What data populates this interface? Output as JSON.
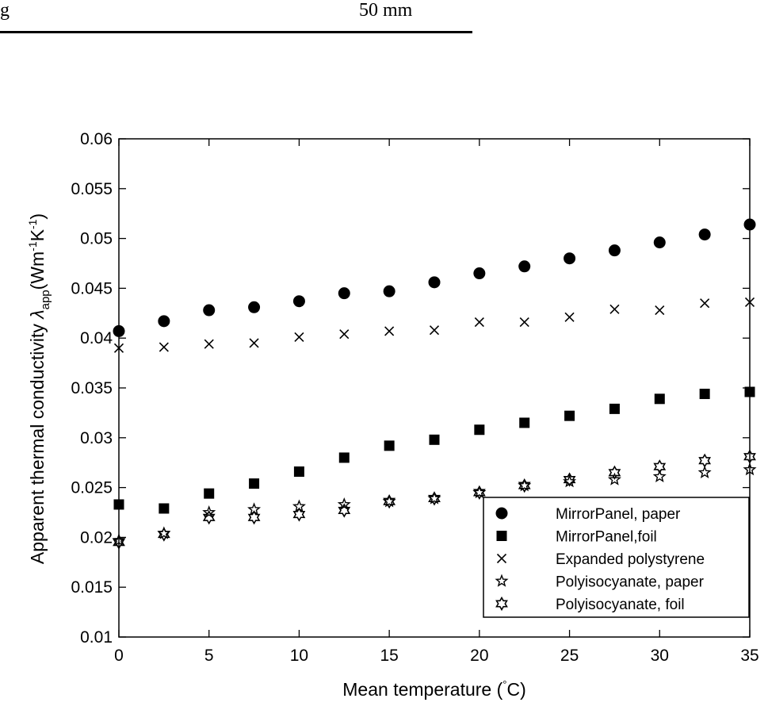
{
  "page_fragment": {
    "left_text": "g",
    "right_text": "50 mm"
  },
  "chart_data": {
    "type": "scatter",
    "title": "",
    "xlabel": "Mean temperature (°C)",
    "ylabel": "Apparent thermal conductivity λapp(Wm-1K-1)",
    "xlim": [
      0,
      35
    ],
    "ylim": [
      0.01,
      0.06
    ],
    "xticks": [
      0,
      5,
      10,
      15,
      20,
      25,
      30,
      35
    ],
    "yticks": [
      0.01,
      0.015,
      0.02,
      0.025,
      0.03,
      0.035,
      0.04,
      0.045,
      0.05,
      0.055,
      0.06
    ],
    "ytick_labels": [
      "0.01",
      "0.015",
      "0.02",
      "0.025",
      "0.03",
      "0.035",
      "0.04",
      "0.045",
      "0.05",
      "0.055",
      "0.06"
    ],
    "grid": false,
    "legend_position": "bottom-right",
    "x": [
      0,
      2.5,
      5,
      7.5,
      10,
      12.5,
      15,
      17.5,
      20,
      22.5,
      25,
      27.5,
      30,
      32.5,
      35
    ],
    "series": [
      {
        "name": "MirrorPanel, paper",
        "marker": "circle",
        "values": [
          0.0407,
          0.0417,
          0.0428,
          0.0431,
          0.0437,
          0.0445,
          0.0447,
          0.0456,
          0.0465,
          0.0472,
          0.048,
          0.0488,
          0.0496,
          0.0504,
          0.0514
        ]
      },
      {
        "name": "MirrorPanel,foil",
        "marker": "square",
        "values": [
          0.0233,
          0.0229,
          0.0244,
          0.0254,
          0.0266,
          0.028,
          0.0292,
          0.0298,
          0.0308,
          0.0315,
          0.0322,
          0.0329,
          0.0339,
          0.0344,
          0.0346
        ]
      },
      {
        "name": "Expanded polystyrene",
        "marker": "x",
        "values": [
          0.039,
          0.0391,
          0.0394,
          0.0395,
          0.0401,
          0.0404,
          0.0407,
          0.0408,
          0.0416,
          0.0416,
          0.0421,
          0.0429,
          0.0428,
          0.0435,
          0.0436
        ]
      },
      {
        "name": "Polyisocyanate, paper",
        "marker": "star",
        "values": [
          0.0197,
          0.0204,
          0.0225,
          0.0228,
          0.0231,
          0.0233,
          0.0236,
          0.0239,
          0.0245,
          0.0252,
          0.0256,
          0.0258,
          0.0261,
          0.0265,
          0.0268
        ]
      },
      {
        "name": "Polyisocyanate, foil",
        "marker": "hexagram",
        "values": [
          0.0195,
          0.0203,
          0.022,
          0.022,
          0.0223,
          0.0227,
          0.0236,
          0.0239,
          0.0245,
          0.0252,
          0.0258,
          0.0265,
          0.0271,
          0.0277,
          0.0281
        ]
      }
    ]
  }
}
